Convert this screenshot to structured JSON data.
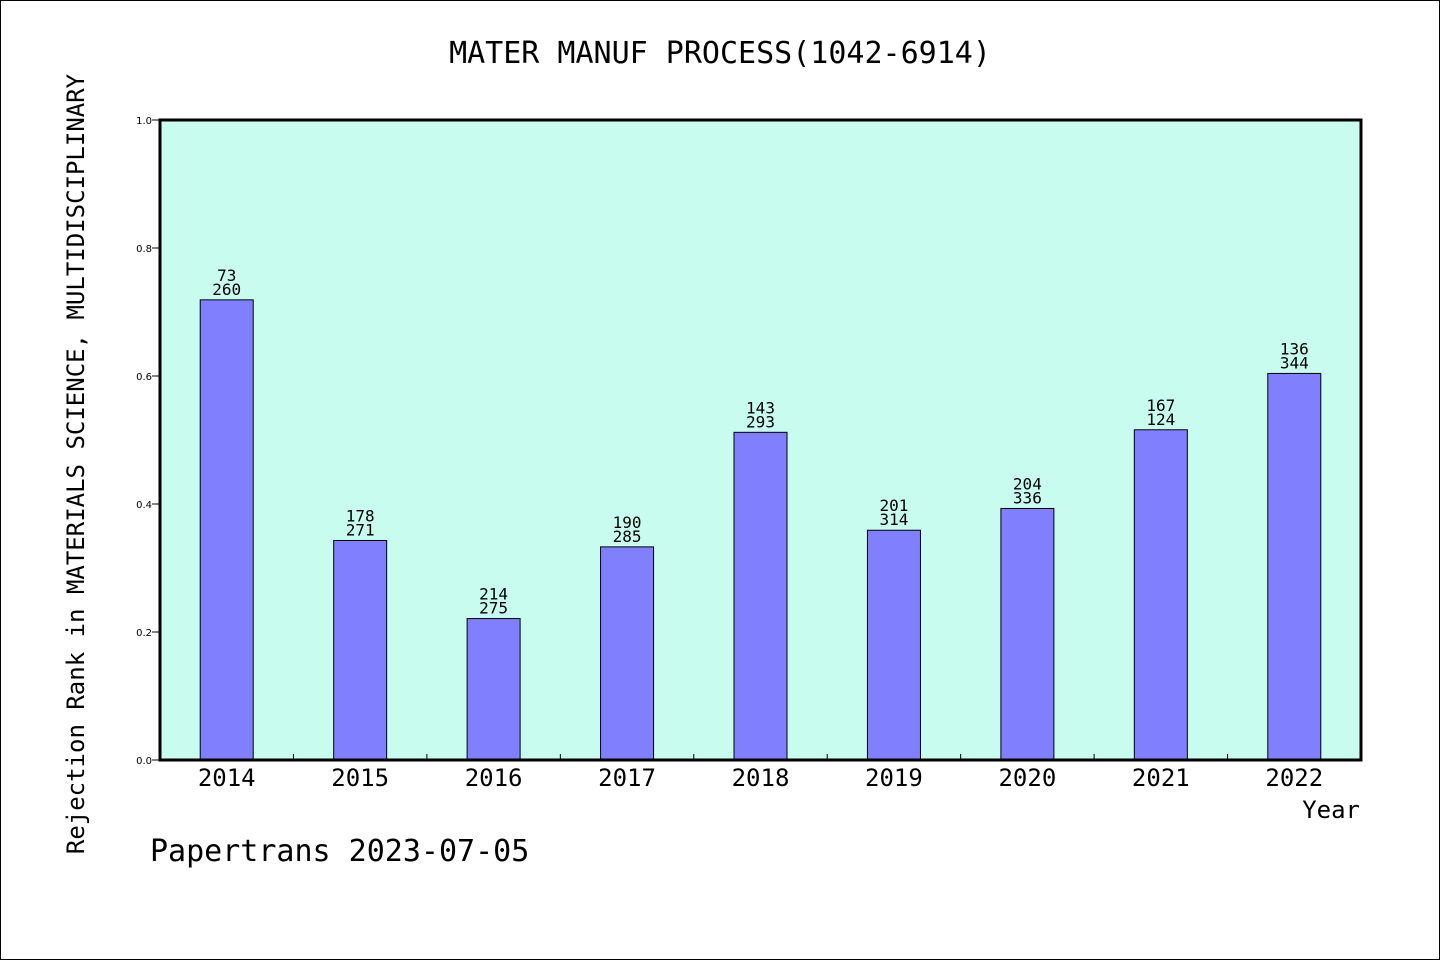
{
  "chart_data": {
    "type": "bar",
    "title": "MATER MANUF PROCESS(1042-6914)",
    "xlabel": "Year",
    "ylabel": "Rejection Rank in MATERIALS SCIENCE, MULTIDISCIPLINARY",
    "ylim": [
      0,
      1.0
    ],
    "yticks": [
      "0.0",
      "0.2",
      "0.4",
      "0.6",
      "0.8",
      "1.0"
    ],
    "categories": [
      "2014",
      "2015",
      "2016",
      "2017",
      "2018",
      "2019",
      "2020",
      "2021",
      "2022"
    ],
    "values": [
      0.719,
      0.343,
      0.221,
      0.333,
      0.512,
      0.359,
      0.393,
      0.516,
      0.604
    ],
    "labels_top": [
      "73",
      "178",
      "214",
      "190",
      "143",
      "201",
      "204",
      "167",
      "136"
    ],
    "labels_bottom": [
      "260",
      "271",
      "275",
      "285",
      "293",
      "314",
      "336",
      "124",
      "344"
    ],
    "grid": false,
    "colors": {
      "plot_background": "#c8fcee",
      "bar_fill": "#8080ff",
      "bar_stroke": "#000000"
    }
  },
  "footer": "Papertrans 2023-07-05"
}
